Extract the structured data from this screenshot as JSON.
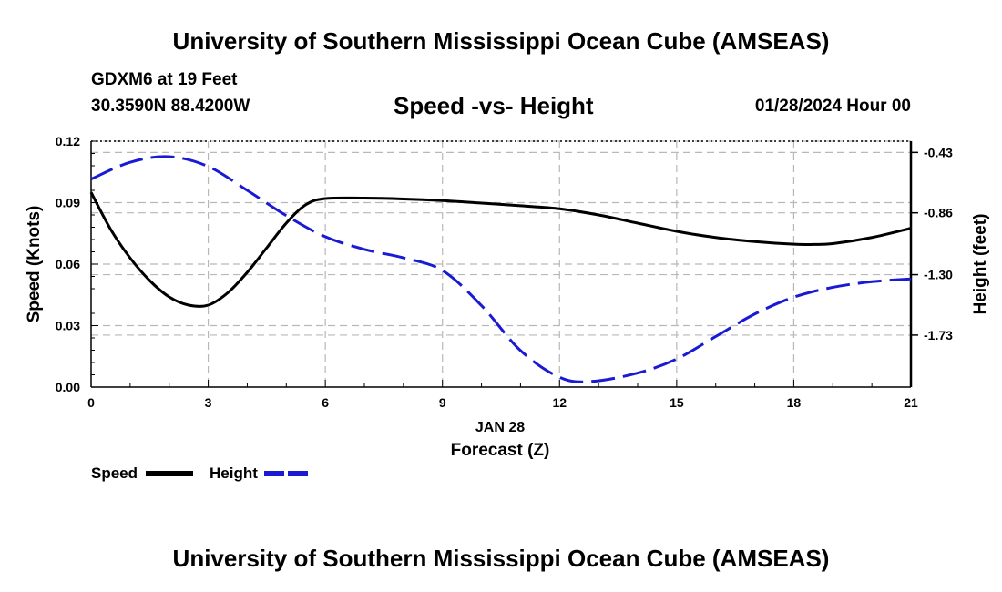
{
  "page": {
    "title_top": "University of Southern Mississippi Ocean Cube (AMSEAS)",
    "title_bottom": "University of Southern Mississippi Ocean Cube (AMSEAS)",
    "station": "GDXM6 at 19 Feet",
    "location": "30.3590N  88.4200W",
    "datetime": "01/28/2024 Hour 00"
  },
  "chart_data": {
    "type": "line",
    "title": "Speed -vs- Height",
    "xlabel": "Forecast (Z)",
    "x_date_label": "JAN 28",
    "ylabel_left": "Speed (Knots)",
    "ylabel_right": "Height (feet)",
    "xlim": [
      0,
      21
    ],
    "ylim_left": [
      0,
      0.12
    ],
    "ylim_right": [
      -2.1,
      -0.35
    ],
    "x_ticks": [
      0,
      3,
      6,
      9,
      12,
      15,
      18,
      21
    ],
    "x_tick_labels": [
      "0",
      "3",
      "6",
      "9",
      "12",
      "15",
      "18",
      "21"
    ],
    "y_left_ticks": [
      0,
      0.03,
      0.06,
      0.09,
      0.12
    ],
    "y_left_tick_labels": [
      "0.00",
      "0.03",
      "0.06",
      "0.09",
      "0.12"
    ],
    "y_right_ticks": [
      -0.43,
      -0.86,
      -1.3,
      -1.73
    ],
    "y_right_tick_labels": [
      "-0.43",
      "-0.86",
      "-1.30",
      "-1.73"
    ],
    "grid": true,
    "series": [
      {
        "name": "Speed",
        "axis": "left",
        "color": "#000000",
        "style": "solid",
        "x": [
          0,
          0.5,
          1,
          1.5,
          2,
          2.5,
          3,
          3.5,
          4,
          4.5,
          5,
          5.5,
          6,
          7,
          8,
          9,
          10,
          11,
          12,
          13,
          14,
          15,
          16,
          17,
          18,
          18.5,
          19,
          20,
          21
        ],
        "values": [
          0.095,
          0.077,
          0.063,
          0.052,
          0.044,
          0.04,
          0.04,
          0.046,
          0.056,
          0.068,
          0.08,
          0.089,
          0.092,
          0.0922,
          0.0918,
          0.091,
          0.0898,
          0.0885,
          0.087,
          0.084,
          0.08,
          0.076,
          0.073,
          0.071,
          0.0697,
          0.0696,
          0.07,
          0.073,
          0.0775
        ]
      },
      {
        "name": "Height",
        "axis": "right",
        "color": "#1a1ad4",
        "style": "dashed",
        "x": [
          0,
          1,
          2,
          3,
          4,
          5,
          6,
          7,
          8,
          9,
          10,
          11,
          12,
          12.8,
          14,
          15,
          16,
          17,
          18,
          19,
          20,
          21
        ],
        "values": [
          -0.62,
          -0.5,
          -0.46,
          -0.53,
          -0.7,
          -0.88,
          -1.03,
          -1.12,
          -1.18,
          -1.27,
          -1.52,
          -1.84,
          -2.03,
          -2.06,
          -2.0,
          -1.9,
          -1.74,
          -1.58,
          -1.46,
          -1.39,
          -1.35,
          -1.33
        ]
      }
    ],
    "legend": [
      {
        "name": "Speed",
        "color": "#000000"
      },
      {
        "name": "Height",
        "color": "#1a1ad4"
      }
    ],
    "legend_position": "bottom-left"
  }
}
